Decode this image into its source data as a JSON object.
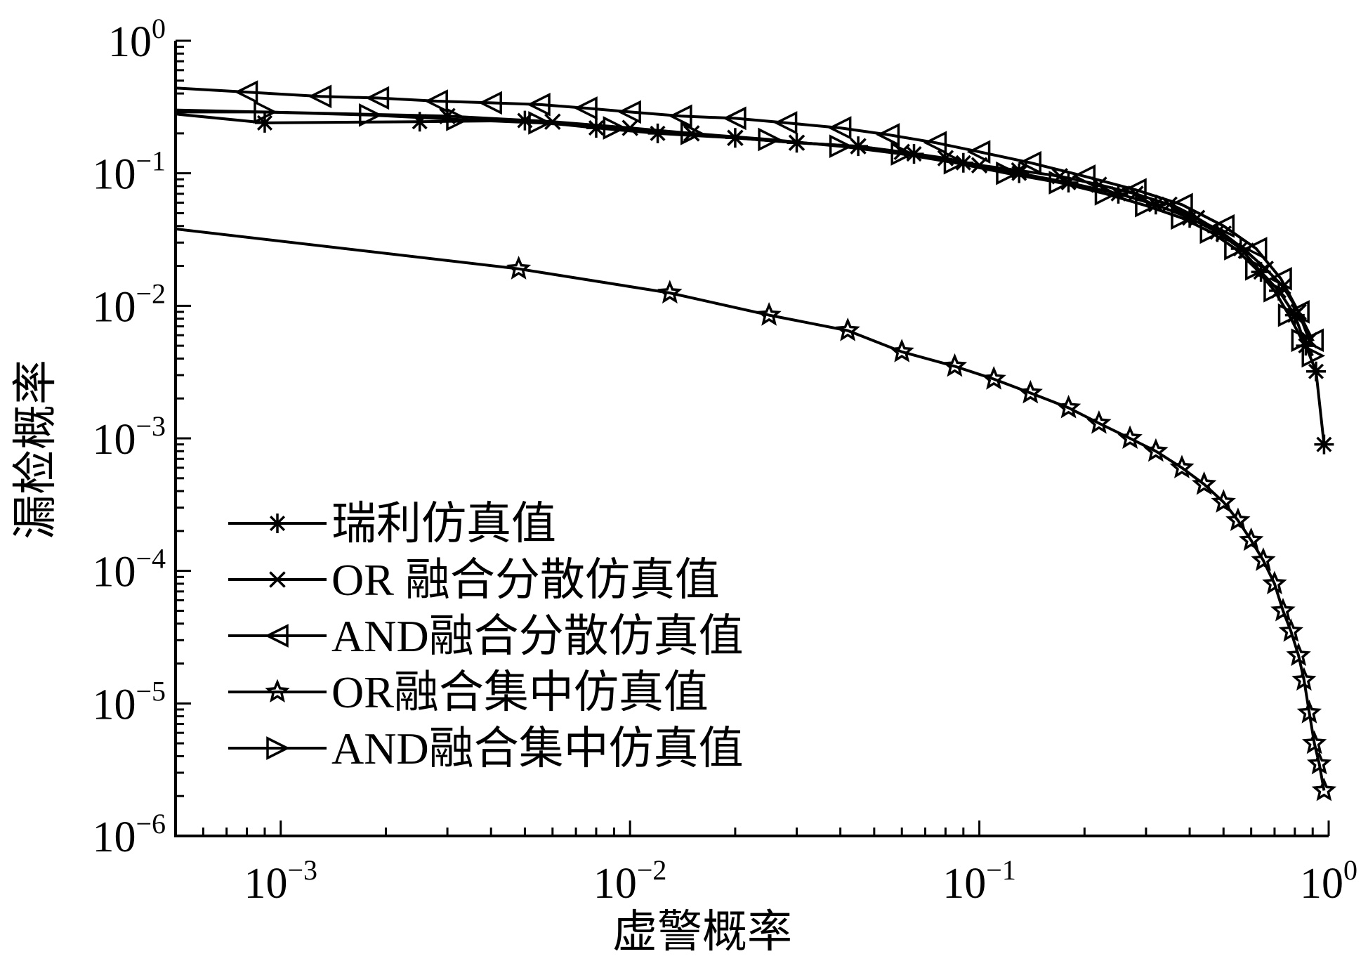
{
  "chart_data": {
    "type": "line",
    "xscale": "log",
    "yscale": "log",
    "xlabel": "虚警概率",
    "ylabel": "漏检概率",
    "xlim": [
      0.0005,
      1
    ],
    "ylim": [
      1e-06,
      1
    ],
    "grid": false,
    "legend_position": "lower-left",
    "x_ticks": [
      {
        "base": "10",
        "exp": "−3",
        "value": 0.001
      },
      {
        "base": "10",
        "exp": "−2",
        "value": 0.01
      },
      {
        "base": "10",
        "exp": "−1",
        "value": 0.1
      },
      {
        "base": "10",
        "exp": "0",
        "value": 1
      }
    ],
    "y_ticks": [
      {
        "base": "10",
        "exp": "0",
        "value": 1
      },
      {
        "base": "10",
        "exp": "−1",
        "value": 0.1
      },
      {
        "base": "10",
        "exp": "−2",
        "value": 0.01
      },
      {
        "base": "10",
        "exp": "−3",
        "value": 0.001
      },
      {
        "base": "10",
        "exp": "−4",
        "value": 0.0001
      },
      {
        "base": "10",
        "exp": "−5",
        "value": 1e-05
      },
      {
        "base": "10",
        "exp": "−6",
        "value": 1e-06
      }
    ],
    "series": [
      {
        "name": "瑞利仿真值",
        "marker": "asterisk",
        "x": [
          0.0005,
          0.0009,
          0.0025,
          0.005,
          0.008,
          0.012,
          0.02,
          0.03,
          0.045,
          0.065,
          0.09,
          0.13,
          0.18,
          0.25,
          0.32,
          0.4,
          0.48,
          0.56,
          0.64,
          0.72,
          0.8,
          0.86,
          0.92,
          0.97
        ],
        "y": [
          0.28,
          0.24,
          0.245,
          0.25,
          0.22,
          0.2,
          0.185,
          0.17,
          0.16,
          0.14,
          0.12,
          0.1,
          0.085,
          0.07,
          0.058,
          0.046,
          0.036,
          0.027,
          0.018,
          0.013,
          0.0085,
          0.005,
          0.0032,
          0.0009
        ]
      },
      {
        "name": "OR 融合分散仿真值",
        "marker": "cross",
        "x": [
          0.0005,
          0.003,
          0.006,
          0.01,
          0.015,
          0.02,
          0.03,
          0.045,
          0.06,
          0.08,
          0.1,
          0.13,
          0.17,
          0.22,
          0.28,
          0.35,
          0.42,
          0.5,
          0.58,
          0.66,
          0.74,
          0.82,
          0.88
        ],
        "y": [
          0.3,
          0.27,
          0.245,
          0.22,
          0.2,
          0.185,
          0.17,
          0.16,
          0.145,
          0.13,
          0.115,
          0.105,
          0.095,
          0.082,
          0.07,
          0.058,
          0.046,
          0.035,
          0.026,
          0.019,
          0.014,
          0.009,
          0.0055
        ]
      },
      {
        "name": "AND融合分散仿真值",
        "marker": "triangle-left",
        "x": [
          0.0005,
          0.0008,
          0.0013,
          0.0019,
          0.0028,
          0.004,
          0.0055,
          0.0075,
          0.01,
          0.014,
          0.02,
          0.028,
          0.04,
          0.055,
          0.075,
          0.1,
          0.14,
          0.2,
          0.28,
          0.38,
          0.5,
          0.62,
          0.73,
          0.82,
          0.9
        ],
        "y": [
          0.44,
          0.41,
          0.38,
          0.37,
          0.35,
          0.34,
          0.33,
          0.31,
          0.29,
          0.27,
          0.26,
          0.24,
          0.22,
          0.195,
          0.17,
          0.145,
          0.12,
          0.095,
          0.075,
          0.058,
          0.04,
          0.027,
          0.016,
          0.009,
          0.0055
        ]
      },
      {
        "name": "OR融合集中仿真值",
        "marker": "star",
        "x": [
          0.0005,
          0.0048,
          0.013,
          0.025,
          0.042,
          0.06,
          0.085,
          0.11,
          0.14,
          0.18,
          0.22,
          0.27,
          0.32,
          0.38,
          0.44,
          0.5,
          0.55,
          0.6,
          0.65,
          0.7,
          0.74,
          0.78,
          0.82,
          0.85,
          0.88,
          0.91,
          0.94,
          0.97
        ],
        "y": [
          0.038,
          0.019,
          0.0125,
          0.0085,
          0.0065,
          0.0045,
          0.0035,
          0.0028,
          0.0022,
          0.0017,
          0.0013,
          0.001,
          0.0008,
          0.0006,
          0.00045,
          0.00033,
          0.00024,
          0.00017,
          0.00012,
          8e-05,
          5e-05,
          3.5e-05,
          2.3e-05,
          1.5e-05,
          8.5e-06,
          5e-06,
          3.5e-06,
          2.2e-06
        ]
      },
      {
        "name": "AND融合集中仿真值",
        "marker": "triangle-right",
        "x": [
          0.0005,
          0.0009,
          0.0018,
          0.0032,
          0.0055,
          0.009,
          0.015,
          0.025,
          0.04,
          0.06,
          0.085,
          0.12,
          0.17,
          0.23,
          0.3,
          0.38,
          0.46,
          0.54,
          0.62,
          0.7,
          0.77,
          0.84,
          0.9
        ],
        "y": [
          0.29,
          0.29,
          0.275,
          0.255,
          0.24,
          0.22,
          0.2,
          0.18,
          0.16,
          0.14,
          0.12,
          0.1,
          0.085,
          0.07,
          0.057,
          0.046,
          0.036,
          0.027,
          0.019,
          0.013,
          0.0085,
          0.0055,
          0.0042
        ]
      }
    ]
  }
}
